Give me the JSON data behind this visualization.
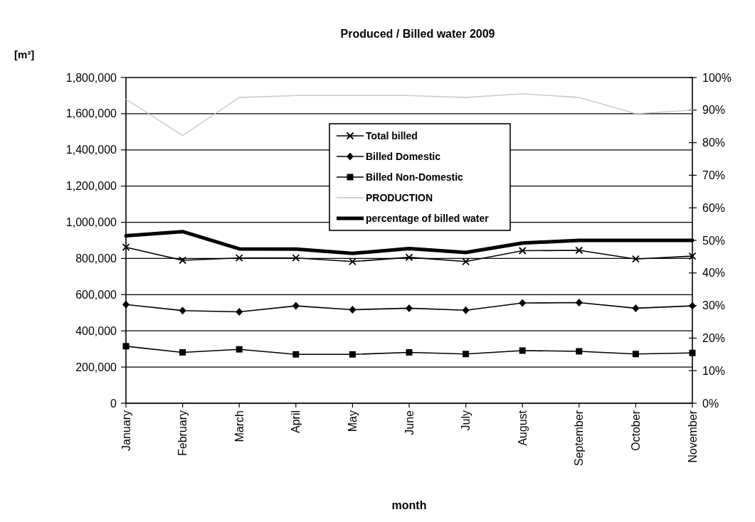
{
  "chart_data": {
    "type": "line",
    "title": "Produced / Billed water 2009",
    "ylabel": "[m³]",
    "xlabel": "month",
    "categories": [
      "January",
      "February",
      "March",
      "April",
      "May",
      "June",
      "July",
      "August",
      "September",
      "October",
      "November"
    ],
    "series": [
      {
        "name": "Total billed",
        "color": "#000000",
        "marker": "cross",
        "values": [
          862000,
          790000,
          803000,
          803000,
          783000,
          806000,
          783000,
          843000,
          845000,
          797000,
          813000
        ]
      },
      {
        "name": "Billed Domestic",
        "color": "#000000",
        "marker": "diamond",
        "values": [
          545000,
          512000,
          505000,
          538000,
          517000,
          525000,
          514000,
          554000,
          556000,
          525000,
          538000
        ]
      },
      {
        "name": "Billed Non-Domestic",
        "color": "#000000",
        "marker": "square",
        "values": [
          315000,
          281000,
          298000,
          270000,
          270000,
          281000,
          272000,
          291000,
          287000,
          272000,
          278000
        ]
      },
      {
        "name": "PRODUCTION",
        "color": "#c4c4c4",
        "marker": "none",
        "values": [
          1680000,
          1480000,
          1690000,
          1700000,
          1700000,
          1700000,
          1690000,
          1710000,
          1690000,
          1600000,
          1620000
        ]
      },
      {
        "name": "percentage of billed water",
        "color": "#000000",
        "marker": "none",
        "axis": "y2",
        "values": [
          51.4,
          52.7,
          47.4,
          47.3,
          46.0,
          47.5,
          46.3,
          49.2,
          50.0,
          50.0,
          50.0
        ]
      }
    ],
    "ylim": [
      0,
      1800000
    ],
    "yticks": [
      {
        "value": 0,
        "label": "0"
      },
      {
        "value": 200000,
        "label": "200,000"
      },
      {
        "value": 400000,
        "label": "400,000"
      },
      {
        "value": 600000,
        "label": "600,000"
      },
      {
        "value": 800000,
        "label": "800,000"
      },
      {
        "value": 1000000,
        "label": "1,000,000"
      },
      {
        "value": 1200000,
        "label": "1,200,000"
      },
      {
        "value": 1400000,
        "label": "1,400,000"
      },
      {
        "value": 1600000,
        "label": "1,600,000"
      },
      {
        "value": 1800000,
        "label": "1,800,000"
      }
    ],
    "y2lim": [
      0,
      100
    ],
    "y2ticks": [
      {
        "value": 0,
        "label": "0%"
      },
      {
        "value": 10,
        "label": "10%"
      },
      {
        "value": 20,
        "label": "20%"
      },
      {
        "value": 30,
        "label": "30%"
      },
      {
        "value": 40,
        "label": "40%"
      },
      {
        "value": 50,
        "label": "50%"
      },
      {
        "value": 60,
        "label": "60%"
      },
      {
        "value": 70,
        "label": "70%"
      },
      {
        "value": 80,
        "label": "80%"
      },
      {
        "value": 90,
        "label": "90%"
      },
      {
        "value": 100,
        "label": "100%"
      }
    ],
    "grid": "y",
    "legend": "top",
    "line_style": "solid"
  }
}
